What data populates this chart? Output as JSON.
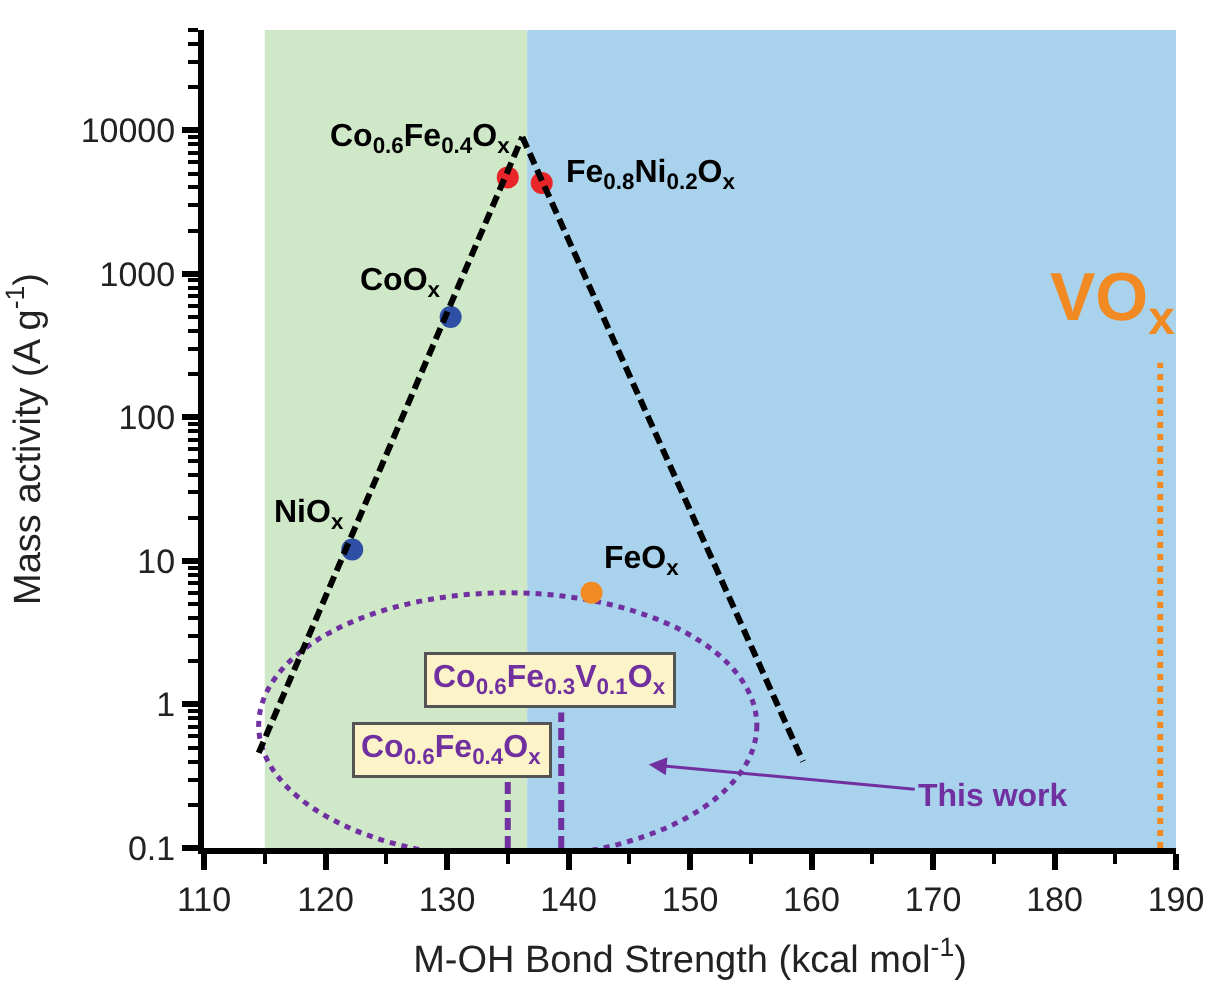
{
  "chart_data": {
    "type": "scatter",
    "xlabel": "M-OH Bond Strength (kcal mol$^{-1}$)",
    "ylabel": "Mass activity (A g$^{-1}$)",
    "xlim": [
      110,
      190
    ],
    "ylim": [
      0.1,
      50000
    ],
    "log": "y",
    "xticks": [
      110,
      120,
      130,
      140,
      150,
      160,
      170,
      180,
      190
    ],
    "yticks": [
      0.1,
      1,
      10,
      100,
      1000,
      10000
    ],
    "grid": false,
    "legend": false,
    "marker": "circle",
    "series": [
      {
        "name": "Co$_{0.6}$Fe$_{0.4}$O$_{x}$",
        "color": "#e8262a",
        "x": [
          135.0
        ],
        "values": [
          4700
        ]
      },
      {
        "name": "Fe$_{0.8}$Ni$_{0.2}$O$_{x}$",
        "color": "#e8262a",
        "x": [
          137.8
        ],
        "values": [
          4300
        ]
      },
      {
        "name": "CoO$_{x}$",
        "color": "#2e4fa3",
        "x": [
          130.3
        ],
        "values": [
          500
        ]
      },
      {
        "name": "NiO$_{x}$",
        "color": "#2e4fa3",
        "x": [
          122.2
        ],
        "values": [
          12
        ]
      },
      {
        "name": "FeO$_{x}$",
        "color": "#f28a24",
        "x": [
          141.9
        ],
        "values": [
          6
        ]
      },
      {
        "type": "line",
        "color": "#000000",
        "line_style": "dashed",
        "marker": "none",
        "x": [
          114.5,
          136.2
        ],
        "values": [
          0.46,
          9000
        ]
      },
      {
        "type": "line",
        "color": "#000000",
        "line_style": "dashed",
        "marker": "none",
        "x": [
          136.2,
          159.3
        ],
        "values": [
          9000,
          0.4
        ]
      },
      {
        "type": "line",
        "name": "VO$_{x}$",
        "color": "#f28a24",
        "line_style": "dotted",
        "marker": "none",
        "x": [
          188.7,
          188.7
        ],
        "values": [
          0.1,
          240
        ]
      },
      {
        "type": "line",
        "name": "Co$_{0.6}$Fe$_{0.4}$O$_{x}$",
        "color": "#7030a0",
        "line_style": "dashed",
        "marker": "none",
        "x": [
          135.0,
          135.0
        ],
        "values": [
          0.1,
          0.29
        ]
      },
      {
        "type": "line",
        "name": "Co$_{0.6}$Fe$_{0.3}$V$_{0.1}$O$_{x}$",
        "color": "#7030a0",
        "line_style": "dashed",
        "marker": "none",
        "x": [
          139.4,
          139.4
        ],
        "values": [
          0.1,
          0.88
        ]
      }
    ],
    "annotations": [
      "This work"
    ],
    "bands": [
      {
        "axis": "x",
        "from": 115,
        "to": 136.6,
        "color": "#cfe8c8"
      },
      {
        "axis": "x",
        "from": 136.6,
        "to": 190,
        "color": "#a9d2ec"
      }
    ]
  }
}
